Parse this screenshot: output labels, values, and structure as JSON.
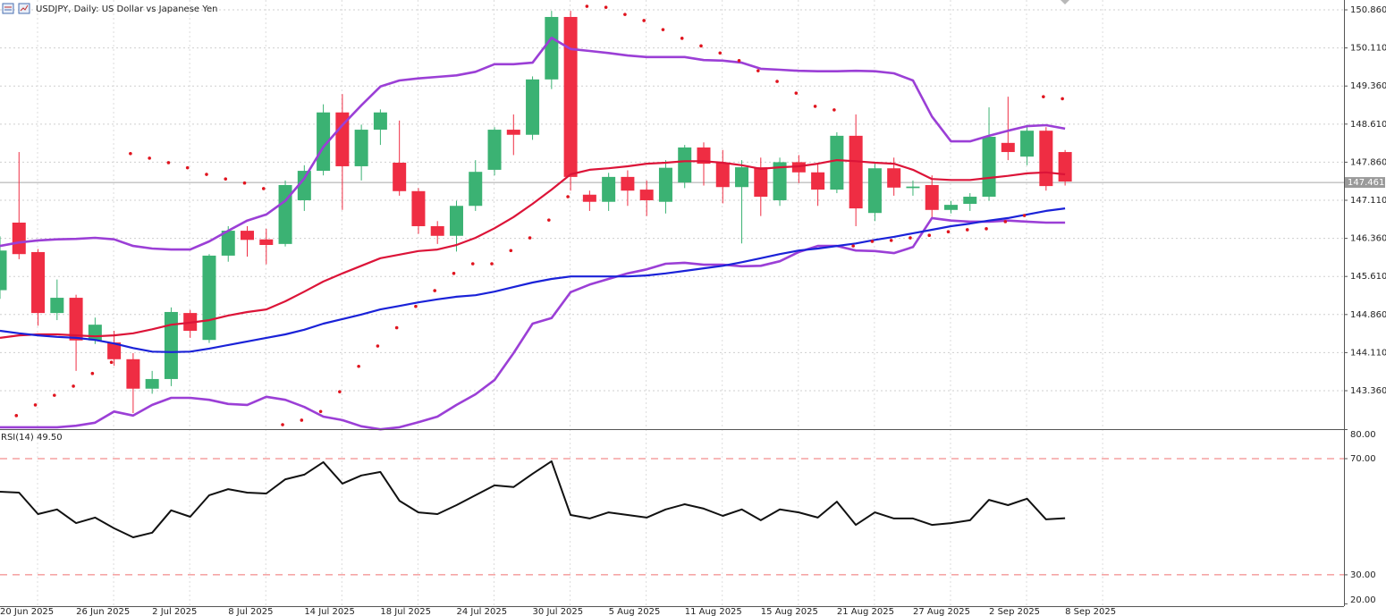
{
  "chart_data": [
    {
      "type": "candlestick",
      "title": "USDJPY, Daily:  US Dollar vs Japanese Yen",
      "categories": [
        "20 Jun 2025",
        null,
        null,
        null,
        "26 Jun 2025",
        null,
        null,
        null,
        "2 Jul 2025",
        null,
        null,
        null,
        "8 Jul 2025",
        null,
        null,
        null,
        "14 Jul 2025",
        null,
        null,
        null,
        "18 Jul 2025",
        null,
        null,
        null,
        "24 Jul 2025",
        null,
        null,
        null,
        "30 Jul 2025",
        null,
        null,
        null,
        "5 Aug 2025",
        null,
        null,
        null,
        "11 Aug 2025",
        null,
        null,
        null,
        "15 Aug 2025",
        null,
        null,
        null,
        "21 Aug 2025",
        null,
        null,
        null,
        "27 Aug 2025",
        null,
        null,
        null,
        "2 Sep 2025",
        null,
        null,
        null,
        "8 Sep 2025"
      ],
      "open": [
        145.34,
        146.67,
        146.09,
        144.89,
        145.19,
        144.35,
        144.31,
        143.98,
        143.4,
        143.59,
        144.89,
        144.36,
        146.02,
        146.51,
        146.34,
        146.25,
        147.11,
        147.69,
        148.84,
        147.78,
        148.5,
        147.85,
        147.29,
        146.6,
        146.41,
        147.0,
        147.71,
        148.5,
        148.4,
        149.49,
        150.72,
        147.22,
        147.08,
        147.57,
        147.32,
        147.08,
        147.46,
        148.15,
        147.85,
        147.37,
        147.76,
        147.11,
        147.86,
        147.66,
        147.32,
        148.38,
        146.86,
        147.74,
        147.35,
        147.41,
        146.92,
        147.04,
        147.18,
        148.24,
        147.97,
        148.48,
        148.06
      ],
      "high": [
        146.4,
        148.06,
        146.15,
        145.55,
        145.25,
        144.8,
        144.54,
        144.1,
        143.75,
        145.0,
        144.95,
        146.05,
        146.6,
        146.6,
        146.55,
        147.5,
        147.8,
        149.0,
        149.2,
        148.6,
        148.9,
        148.68,
        147.35,
        146.7,
        147.1,
        147.9,
        148.55,
        148.8,
        149.55,
        150.84,
        150.84,
        147.3,
        147.65,
        147.7,
        147.5,
        147.9,
        148.2,
        148.25,
        148.1,
        147.9,
        147.95,
        147.95,
        148.0,
        147.85,
        148.45,
        148.8,
        147.85,
        147.95,
        147.5,
        147.6,
        147.1,
        147.25,
        148.94,
        149.15,
        148.6,
        148.55,
        148.1
      ],
      "low": [
        145.17,
        145.95,
        144.64,
        144.75,
        143.75,
        144.28,
        143.85,
        142.92,
        143.3,
        143.45,
        144.4,
        144.3,
        145.9,
        146.0,
        145.85,
        146.2,
        146.9,
        147.6,
        146.92,
        147.5,
        148.2,
        147.2,
        146.45,
        146.25,
        146.1,
        146.9,
        147.6,
        148.0,
        148.3,
        149.3,
        147.3,
        146.9,
        146.9,
        147.0,
        146.8,
        146.85,
        147.35,
        147.4,
        147.05,
        146.26,
        146.8,
        147.0,
        147.45,
        147.0,
        147.25,
        146.6,
        146.7,
        147.2,
        147.2,
        146.75,
        146.85,
        146.9,
        147.1,
        147.9,
        147.8,
        147.3,
        147.4
      ],
      "close": [
        146.12,
        146.05,
        144.89,
        145.19,
        144.35,
        144.66,
        143.98,
        143.4,
        143.59,
        144.91,
        144.54,
        146.02,
        146.51,
        146.33,
        146.23,
        147.41,
        147.69,
        148.84,
        147.78,
        148.5,
        148.84,
        147.29,
        146.6,
        146.41,
        147.0,
        147.67,
        148.5,
        148.4,
        149.49,
        150.72,
        147.57,
        147.08,
        147.57,
        147.3,
        147.11,
        147.75,
        148.15,
        147.83,
        147.37,
        147.76,
        147.18,
        147.86,
        147.66,
        147.32,
        148.38,
        146.95,
        147.74,
        147.36,
        147.38,
        146.92,
        147.02,
        147.18,
        148.36,
        148.06,
        148.48,
        147.39,
        147.48
      ],
      "up_color": "#3bb273",
      "down_color": "#ef2d43",
      "lines": [
        {
          "color": "#9b3fd6",
          "width": 2.6,
          "values": [
            146.21,
            146.28,
            146.32,
            146.34,
            146.35,
            146.37,
            146.34,
            146.21,
            146.16,
            146.14,
            146.14,
            146.3,
            146.51,
            146.71,
            146.83,
            147.1,
            147.54,
            148.16,
            148.59,
            148.98,
            149.35,
            149.47,
            149.51,
            149.54,
            149.57,
            149.64,
            149.79,
            149.79,
            149.82,
            150.31,
            150.09,
            150.05,
            150.01,
            149.96,
            149.93,
            149.93,
            149.93,
            149.87,
            149.86,
            149.82,
            149.7,
            149.68,
            149.66,
            149.65,
            149.65,
            149.66,
            149.65,
            149.61,
            149.47,
            148.76,
            148.27,
            148.27,
            148.38,
            148.48,
            148.57,
            148.59,
            148.52
          ]
        },
        {
          "color": "#9b3fd6",
          "width": 2.6,
          "values": [
            142.64,
            142.64,
            142.64,
            142.64,
            142.67,
            142.73,
            142.95,
            142.87,
            143.08,
            143.22,
            143.22,
            143.18,
            143.1,
            143.08,
            143.24,
            143.18,
            143.04,
            142.85,
            142.78,
            142.66,
            142.6,
            142.64,
            142.74,
            142.85,
            143.08,
            143.29,
            143.57,
            144.1,
            144.68,
            144.79,
            145.3,
            145.45,
            145.56,
            145.67,
            145.75,
            145.86,
            145.88,
            145.84,
            145.84,
            145.81,
            145.82,
            145.91,
            146.09,
            146.21,
            146.21,
            146.12,
            146.11,
            146.07,
            146.19,
            146.76,
            146.71,
            146.69,
            146.69,
            146.71,
            146.69,
            146.67,
            146.67
          ]
        },
        {
          "color": "#dc1438",
          "width": 2.2,
          "values": [
            144.4,
            144.45,
            144.47,
            144.47,
            144.45,
            144.43,
            144.45,
            144.49,
            144.57,
            144.66,
            144.7,
            144.75,
            144.84,
            144.91,
            144.96,
            145.12,
            145.31,
            145.51,
            145.67,
            145.82,
            145.97,
            146.04,
            146.11,
            146.14,
            146.23,
            146.37,
            146.56,
            146.78,
            147.04,
            147.32,
            147.62,
            147.71,
            147.74,
            147.78,
            147.83,
            147.85,
            147.88,
            147.88,
            147.85,
            147.8,
            147.73,
            147.76,
            147.78,
            147.83,
            147.9,
            147.88,
            147.85,
            147.83,
            147.71,
            147.53,
            147.51,
            147.51,
            147.55,
            147.59,
            147.64,
            147.66,
            147.62
          ]
        },
        {
          "color": "#1a22d8",
          "width": 2.2,
          "values": [
            144.54,
            144.49,
            144.45,
            144.42,
            144.4,
            144.36,
            144.29,
            144.2,
            144.13,
            144.12,
            144.13,
            144.19,
            144.26,
            144.33,
            144.4,
            144.47,
            144.56,
            144.68,
            144.77,
            144.86,
            144.96,
            145.03,
            145.1,
            145.16,
            145.21,
            145.24,
            145.31,
            145.4,
            145.49,
            145.56,
            145.61,
            145.61,
            145.61,
            145.61,
            145.63,
            145.67,
            145.72,
            145.77,
            145.82,
            145.89,
            145.97,
            146.05,
            146.12,
            146.16,
            146.21,
            146.26,
            146.33,
            146.39,
            146.46,
            146.53,
            146.6,
            146.65,
            146.71,
            146.76,
            146.83,
            146.9,
            146.95
          ]
        }
      ],
      "dots": {
        "color": "#e0141e",
        "values": [
          null,
          142.87,
          143.08,
          143.27,
          143.45,
          143.7,
          143.92,
          148.03,
          147.94,
          147.85,
          147.75,
          147.62,
          147.53,
          147.45,
          147.34,
          142.69,
          142.78,
          142.95,
          143.34,
          143.84,
          144.24,
          144.6,
          145.02,
          145.33,
          145.67,
          145.86,
          145.86,
          146.12,
          146.37,
          146.72,
          147.18,
          150.93,
          150.91,
          150.77,
          150.65,
          150.47,
          150.3,
          150.15,
          150.01,
          149.86,
          149.66,
          149.45,
          149.22,
          148.96,
          148.89,
          146.21,
          146.3,
          146.32,
          146.37,
          146.42,
          146.49,
          146.53,
          146.55,
          146.69,
          146.81,
          149.15,
          149.11
        ]
      },
      "current_price": 147.461,
      "ylim": [
        142.603,
        151.054
      ],
      "yticks": [
        {
          "value": 150.86,
          "label": "150.860"
        },
        {
          "value": 150.11,
          "label": "150.110"
        },
        {
          "value": 149.36,
          "label": "149.360"
        },
        {
          "value": 148.61,
          "label": "148.610"
        },
        {
          "value": 147.86,
          "label": "147.860"
        },
        {
          "value": 147.11,
          "label": "147.110"
        },
        {
          "value": 146.36,
          "label": "146.360"
        },
        {
          "value": 145.61,
          "label": "145.610"
        },
        {
          "value": 144.86,
          "label": "144.860"
        },
        {
          "value": 144.11,
          "label": "144.110"
        },
        {
          "value": 143.36,
          "label": "143.360"
        }
      ],
      "grid": true
    },
    {
      "type": "line",
      "title": "RSI(14) 49.50",
      "color": "#111111",
      "values": [
        58.6,
        58.3,
        50.9,
        52.5,
        47.8,
        49.7,
        46.0,
        42.9,
        44.5,
        52.2,
        50.0,
        57.4,
        59.5,
        58.3,
        58.0,
        62.9,
        64.5,
        68.8,
        61.4,
        64.2,
        65.4,
        55.5,
        51.5,
        50.9,
        54.0,
        57.4,
        60.8,
        60.2,
        64.8,
        69.1,
        50.6,
        49.4,
        51.5,
        50.6,
        49.7,
        52.5,
        54.3,
        52.8,
        50.3,
        52.5,
        48.8,
        52.5,
        51.5,
        49.7,
        55.2,
        47.2,
        51.5,
        49.4,
        49.4,
        47.2,
        47.8,
        48.8,
        55.8,
        54.0,
        56.2,
        49.1,
        49.5
      ],
      "levels": [
        70,
        30
      ],
      "level_color": "#f07070",
      "ylim": [
        19.2,
        79.85
      ],
      "yticks": [
        {
          "value": 80,
          "label": "80.00"
        },
        {
          "value": 70,
          "label": "70.00"
        },
        {
          "value": 30,
          "label": "30.00"
        },
        {
          "value": 20,
          "label": "20.00"
        }
      ]
    }
  ]
}
